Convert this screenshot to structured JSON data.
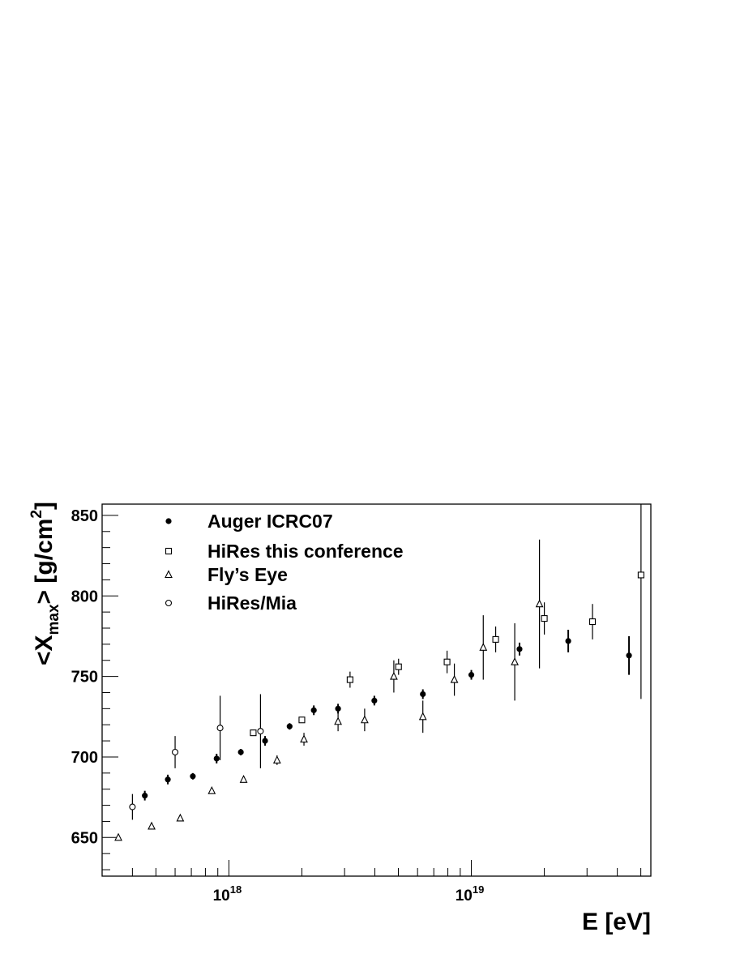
{
  "chart_data": {
    "type": "scatter",
    "title": "",
    "xlabel": "E [eV]",
    "ylabel": {
      "prefix": "<X",
      "sub": "max",
      "mid": "> [g/cm",
      "sup": "2",
      "suffix": "]"
    },
    "xscale": "log",
    "xlim": [
      3e+17,
      5.5e+19
    ],
    "ylim": [
      626,
      857
    ],
    "x_tick_labels": [
      {
        "value": 1e+18,
        "base": "10",
        "exp": "18"
      },
      {
        "value": 1e+19,
        "base": "10",
        "exp": "19"
      }
    ],
    "y_tick_labels": [
      650,
      700,
      750,
      800,
      850
    ],
    "grid": false,
    "legend_position": "top-left",
    "series": [
      {
        "name": "Auger ICRC07",
        "marker": "filled-circle",
        "points": [
          {
            "x": 4.5e+17,
            "y": 676,
            "err": 3
          },
          {
            "x": 5.6e+17,
            "y": 686,
            "err": 3
          },
          {
            "x": 7.1e+17,
            "y": 688,
            "err": 2
          },
          {
            "x": 8.9e+17,
            "y": 699,
            "err": 3
          },
          {
            "x": 1.12e+18,
            "y": 703,
            "err": 2
          },
          {
            "x": 1.41e+18,
            "y": 710,
            "err": 3
          },
          {
            "x": 1.78e+18,
            "y": 719,
            "err": 2
          },
          {
            "x": 2.24e+18,
            "y": 729,
            "err": 3
          },
          {
            "x": 2.82e+18,
            "y": 730,
            "err": 3
          },
          {
            "x": 3.98e+18,
            "y": 735,
            "err": 3
          },
          {
            "x": 6.31e+18,
            "y": 739,
            "err": 3
          },
          {
            "x": 1e+19,
            "y": 751,
            "err": 3
          },
          {
            "x": 1.58e+19,
            "y": 767,
            "err": 4
          },
          {
            "x": 2.51e+19,
            "y": 772,
            "err": 7
          },
          {
            "x": 4.47e+19,
            "y": 763,
            "err": 12
          }
        ]
      },
      {
        "name": "HiRes this conference",
        "marker": "open-square",
        "points": [
          {
            "x": 1.26e+18,
            "y": 715,
            "err": 0
          },
          {
            "x": 2e+18,
            "y": 723,
            "err": 0
          },
          {
            "x": 3.16e+18,
            "y": 748,
            "err": 5
          },
          {
            "x": 5.01e+18,
            "y": 756,
            "err": 5
          },
          {
            "x": 7.94e+18,
            "y": 759,
            "err": 7
          },
          {
            "x": 1.26e+19,
            "y": 773,
            "err": 8
          },
          {
            "x": 2e+19,
            "y": 786,
            "err": 10
          },
          {
            "x": 3.16e+19,
            "y": 784,
            "err": 11
          },
          {
            "x": 5.01e+19,
            "y": 813,
            "err": 77
          }
        ]
      },
      {
        "name": "Fly’s Eye",
        "marker": "open-triangle",
        "points": [
          {
            "x": 3.5e+17,
            "y": 650,
            "err": 0
          },
          {
            "x": 4.8e+17,
            "y": 657,
            "err": 0
          },
          {
            "x": 6.3e+17,
            "y": 662,
            "err": 0
          },
          {
            "x": 8.5e+17,
            "y": 679,
            "err": 0
          },
          {
            "x": 1.15e+18,
            "y": 686,
            "err": 0
          },
          {
            "x": 1.58e+18,
            "y": 698,
            "err": 3
          },
          {
            "x": 2.04e+18,
            "y": 711,
            "err": 4
          },
          {
            "x": 2.82e+18,
            "y": 722,
            "err": 6
          },
          {
            "x": 3.63e+18,
            "y": 723,
            "err": 7
          },
          {
            "x": 4.79e+18,
            "y": 750,
            "err": 10
          },
          {
            "x": 6.31e+18,
            "y": 725,
            "err": 10
          },
          {
            "x": 8.51e+18,
            "y": 748,
            "err": 10
          },
          {
            "x": 1.12e+19,
            "y": 768,
            "err": 20
          },
          {
            "x": 1.51e+19,
            "y": 759,
            "err": 24
          },
          {
            "x": 1.91e+19,
            "y": 795,
            "err": 40
          }
        ]
      },
      {
        "name": "HiRes/Mia",
        "marker": "open-circle",
        "points": [
          {
            "x": 4e+17,
            "y": 669,
            "err": 8
          },
          {
            "x": 6e+17,
            "y": 703,
            "err": 10
          },
          {
            "x": 9.2e+17,
            "y": 718,
            "err": 20
          },
          {
            "x": 1.35e+18,
            "y": 716,
            "err": 23
          }
        ]
      }
    ]
  }
}
